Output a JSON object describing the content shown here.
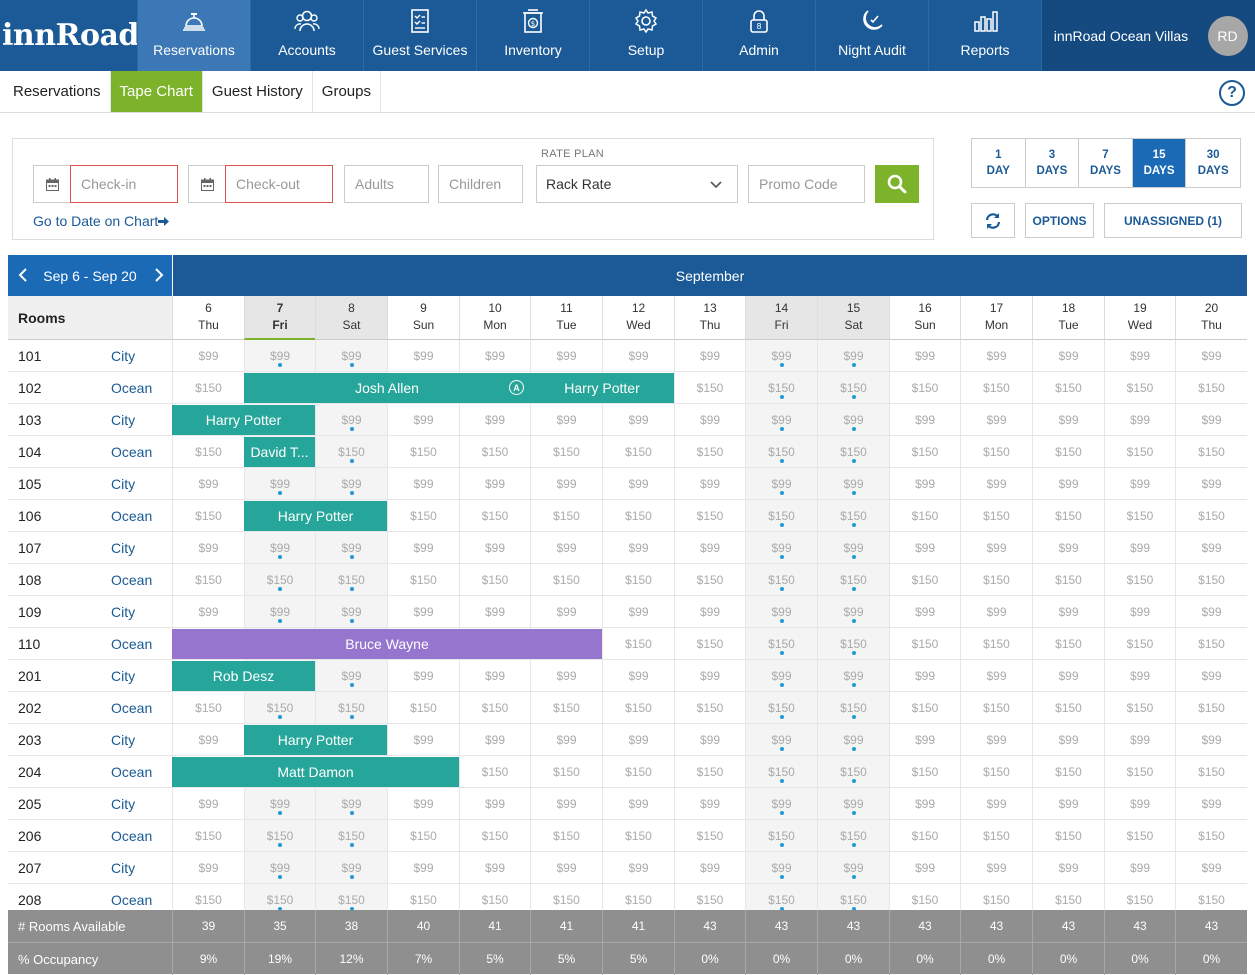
{
  "app": {
    "logo": "innRoad"
  },
  "nav": {
    "items": [
      {
        "label": "Reservations",
        "icon": "bell-icon",
        "active": true
      },
      {
        "label": "Accounts",
        "icon": "people-icon"
      },
      {
        "label": "Guest Services",
        "icon": "clipboard-icon"
      },
      {
        "label": "Inventory",
        "icon": "inventory-icon"
      },
      {
        "label": "Setup",
        "icon": "gear-icon"
      },
      {
        "label": "Admin",
        "icon": "lock-icon"
      },
      {
        "label": "Night Audit",
        "icon": "moon-icon"
      },
      {
        "label": "Reports",
        "icon": "bar-chart-icon"
      }
    ],
    "property": "innRoad Ocean Villas",
    "avatar": "RD"
  },
  "subnav": {
    "tabs": [
      "Reservations",
      "Tape Chart",
      "Guest History",
      "Groups"
    ],
    "active": "Tape Chart",
    "help": "?"
  },
  "search": {
    "checkin_placeholder": "Check-in",
    "checkout_placeholder": "Check-out",
    "adults_placeholder": "Adults",
    "children_placeholder": "Children",
    "rate_plan_label": "RATE PLAN",
    "rate_plan_value": "Rack Rate",
    "promo_placeholder": "Promo Code",
    "goto_label": "Go to Date on Chart"
  },
  "view": {
    "days": [
      {
        "n": "1",
        "unit": "DAY"
      },
      {
        "n": "3",
        "unit": "DAYS"
      },
      {
        "n": "7",
        "unit": "DAYS"
      },
      {
        "n": "15",
        "unit": "DAYS",
        "active": true
      },
      {
        "n": "30",
        "unit": "DAYS"
      }
    ],
    "options_label": "OPTIONS",
    "unassigned_label": "UNASSIGNED (1)"
  },
  "chart": {
    "range_label": "Sep 6 - Sep 20",
    "month": "September",
    "rooms_header": "Rooms",
    "dates": [
      {
        "d": "6",
        "w": "Thu"
      },
      {
        "d": "7",
        "w": "Fri",
        "today": true
      },
      {
        "d": "8",
        "w": "Sat"
      },
      {
        "d": "9",
        "w": "Sun"
      },
      {
        "d": "10",
        "w": "Mon"
      },
      {
        "d": "11",
        "w": "Tue"
      },
      {
        "d": "12",
        "w": "Wed"
      },
      {
        "d": "13",
        "w": "Thu"
      },
      {
        "d": "14",
        "w": "Fri"
      },
      {
        "d": "15",
        "w": "Sat"
      },
      {
        "d": "16",
        "w": "Sun"
      },
      {
        "d": "17",
        "w": "Mon"
      },
      {
        "d": "18",
        "w": "Tue"
      },
      {
        "d": "19",
        "w": "Wed"
      },
      {
        "d": "20",
        "w": "Thu"
      }
    ],
    "weekend_days": [
      1,
      2,
      8,
      9
    ],
    "rates": {
      "City": "$99",
      "Ocean": "$150"
    },
    "rooms": [
      {
        "no": "101",
        "type": "City"
      },
      {
        "no": "102",
        "type": "Ocean"
      },
      {
        "no": "103",
        "type": "City"
      },
      {
        "no": "104",
        "type": "Ocean"
      },
      {
        "no": "105",
        "type": "City"
      },
      {
        "no": "106",
        "type": "Ocean"
      },
      {
        "no": "107",
        "type": "City"
      },
      {
        "no": "108",
        "type": "Ocean"
      },
      {
        "no": "109",
        "type": "City"
      },
      {
        "no": "110",
        "type": "Ocean"
      },
      {
        "no": "201",
        "type": "City"
      },
      {
        "no": "202",
        "type": "Ocean"
      },
      {
        "no": "203",
        "type": "City"
      },
      {
        "no": "204",
        "type": "Ocean"
      },
      {
        "no": "205",
        "type": "City"
      },
      {
        "no": "206",
        "type": "Ocean"
      },
      {
        "no": "207",
        "type": "City"
      },
      {
        "no": "208",
        "type": "Ocean"
      }
    ],
    "reservations": [
      {
        "room": 1,
        "start": 1,
        "span": 4,
        "guest": "Josh Allen",
        "color": "teal",
        "badge": "A"
      },
      {
        "room": 1,
        "start": 5,
        "span": 2,
        "guest": "Harry Potter",
        "color": "teal"
      },
      {
        "room": 2,
        "start": 0,
        "span": 2,
        "guest": "Harry Potter",
        "color": "teal"
      },
      {
        "room": 3,
        "start": 1,
        "span": 1,
        "guest": "David T...",
        "color": "teal"
      },
      {
        "room": 5,
        "start": 1,
        "span": 2,
        "guest": "Harry Potter",
        "color": "teal"
      },
      {
        "room": 9,
        "start": 0,
        "span": 6,
        "guest": "Bruce Wayne",
        "color": "purple"
      },
      {
        "room": 10,
        "start": 0,
        "span": 2,
        "guest": "Rob Desz",
        "color": "teal"
      },
      {
        "room": 12,
        "start": 1,
        "span": 2,
        "guest": "Harry Potter",
        "color": "teal"
      },
      {
        "room": 13,
        "start": 0,
        "span": 4,
        "guest": "Matt Damon",
        "color": "teal"
      }
    ],
    "rooms_available_label": "# Rooms Available",
    "rooms_available": [
      "39",
      "35",
      "38",
      "40",
      "41",
      "41",
      "41",
      "43",
      "43",
      "43",
      "43",
      "43",
      "43",
      "43",
      "43"
    ],
    "occupancy_label": "% Occupancy",
    "occupancy": [
      "9%",
      "19%",
      "12%",
      "7%",
      "5%",
      "5%",
      "5%",
      "0%",
      "0%",
      "0%",
      "0%",
      "0%",
      "0%",
      "0%",
      "0%"
    ]
  },
  "colors": {
    "primary": "#1b5a96",
    "accent_green": "#7cb32b",
    "booking_teal": "#26a69a",
    "booking_purple": "#9575cd"
  }
}
